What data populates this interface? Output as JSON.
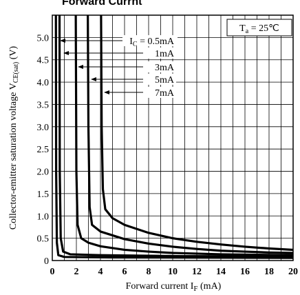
{
  "chart_data": {
    "type": "line",
    "title": "Forward Currnt",
    "x_label": {
      "text": "Forward current I",
      "sub": "F",
      "suffix": " (mA)"
    },
    "y_label": {
      "text": "Collector-emitter saturation voltage V",
      "sub": "CE(sat)",
      "suffix": " (V)"
    },
    "legend_prefix": {
      "text": "I",
      "sub": "C",
      "eq": " = "
    },
    "condition": {
      "text": "T",
      "sub": "a",
      "suffix": " = 25℃"
    },
    "xlim": [
      0,
      20
    ],
    "ylim": [
      0,
      5.5
    ],
    "xticks": [
      0,
      2,
      4,
      6,
      8,
      10,
      12,
      14,
      16,
      18,
      20
    ],
    "x_minor_grid": [
      1,
      3,
      5,
      7,
      9,
      11,
      13,
      15,
      17,
      19
    ],
    "yticks": [
      0,
      0.5,
      {
        "value": 1,
        "label": "1.0"
      },
      1.5,
      {
        "value": 2,
        "label": "2.0"
      },
      2.5,
      {
        "value": 3,
        "label": "3.0"
      },
      3.5,
      {
        "value": 4,
        "label": "4.0"
      },
      4.5,
      {
        "value": 5,
        "label": "5.0"
      }
    ],
    "grid": true,
    "series": [
      {
        "name": "0.5mA",
        "color": "#000000",
        "x": [
          0.3,
          0.32,
          0.38,
          0.5,
          1,
          5,
          20
        ],
        "values": [
          5.5,
          2,
          0.4,
          0.12,
          0.08,
          0.07,
          0.06
        ]
      },
      {
        "name": "1mA",
        "color": "#000000",
        "x": [
          0.6,
          0.62,
          0.7,
          0.9,
          1.5,
          4,
          10,
          20
        ],
        "values": [
          5.5,
          2,
          0.5,
          0.2,
          0.14,
          0.12,
          0.1,
          0.09
        ]
      },
      {
        "name": "3mA",
        "color": "#000000",
        "x": [
          1.95,
          2,
          2.1,
          2.4,
          3,
          4,
          6,
          8,
          10,
          14,
          20
        ],
        "values": [
          5.5,
          2,
          0.8,
          0.5,
          0.4,
          0.32,
          0.24,
          0.2,
          0.17,
          0.14,
          0.12
        ]
      },
      {
        "name": "5mA",
        "color": "#000000",
        "x": [
          2.95,
          3,
          3.1,
          3.3,
          4,
          6,
          8,
          10,
          12,
          14,
          16,
          18,
          20
        ],
        "values": [
          5.5,
          3,
          1.2,
          0.8,
          0.65,
          0.48,
          0.38,
          0.31,
          0.26,
          0.22,
          0.2,
          0.18,
          0.17
        ]
      },
      {
        "name": "7mA",
        "color": "#000000",
        "x": [
          4.05,
          4.1,
          4.2,
          4.4,
          5,
          6,
          8,
          10,
          12,
          14,
          16,
          18,
          20
        ],
        "values": [
          5.5,
          3,
          1.6,
          1.15,
          0.95,
          0.8,
          0.62,
          0.5,
          0.42,
          0.36,
          0.31,
          0.27,
          0.24
        ]
      }
    ]
  }
}
